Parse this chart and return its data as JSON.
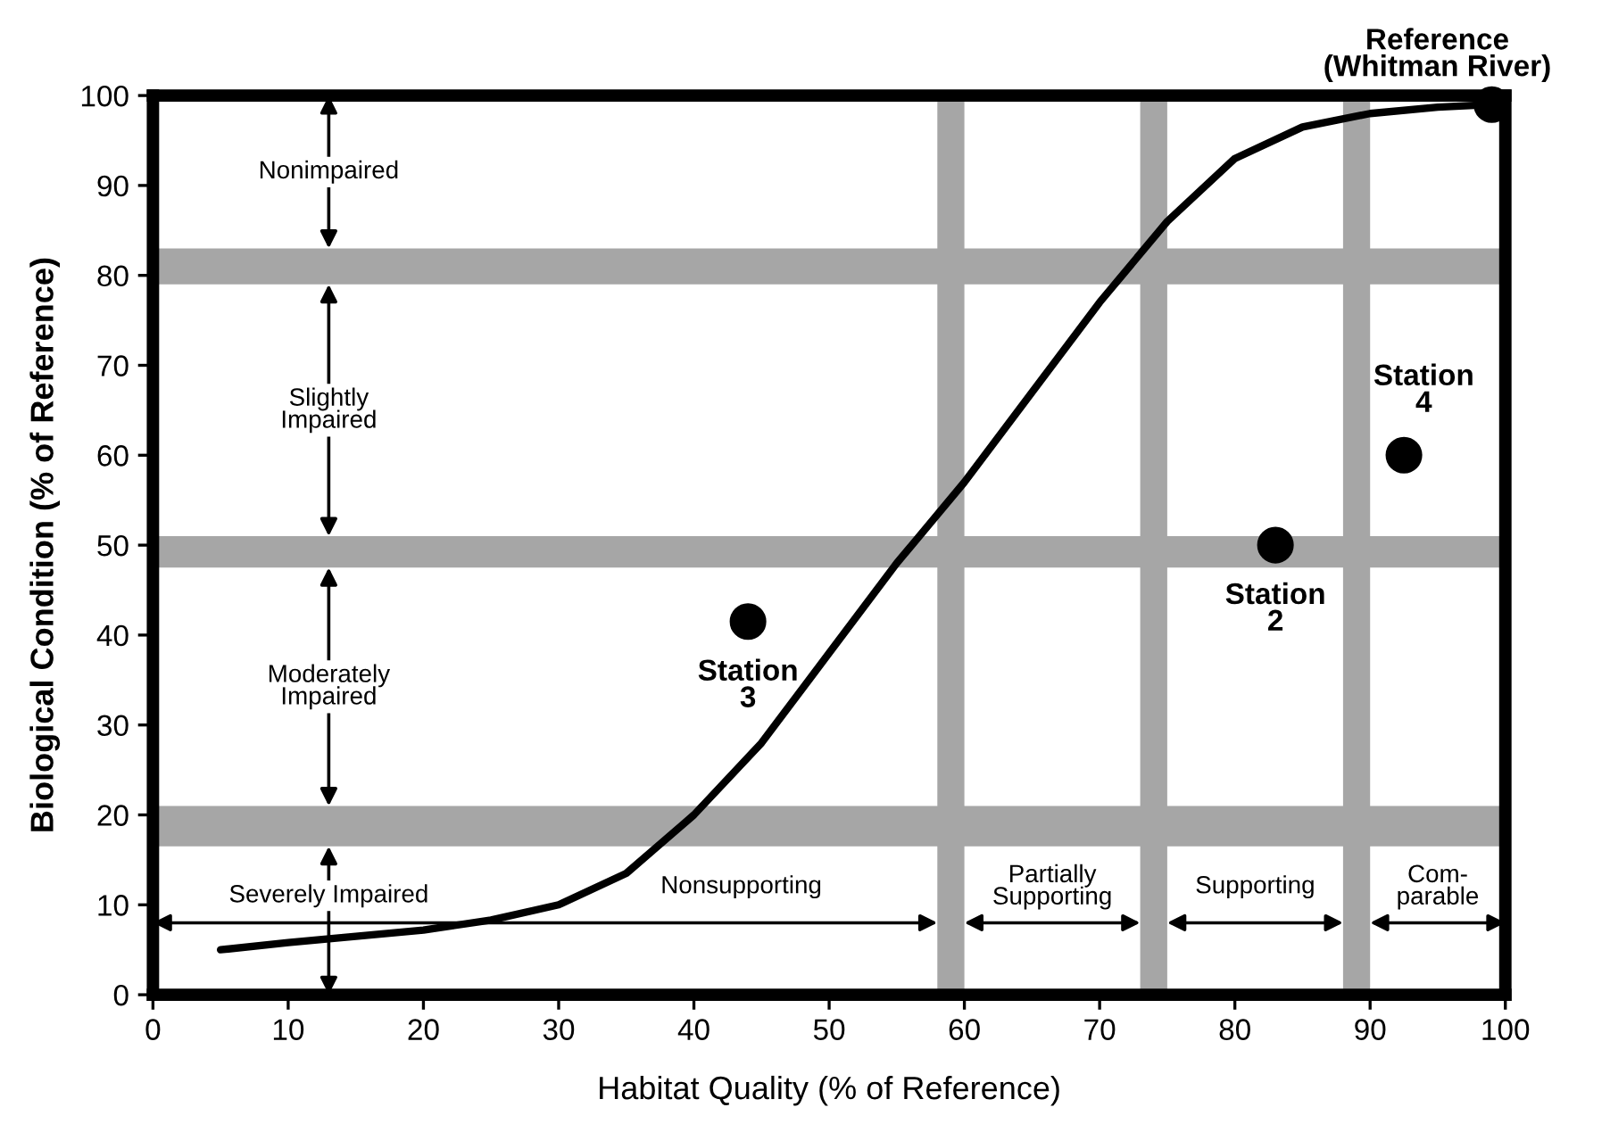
{
  "chart_data": {
    "type": "scatter",
    "xlabel": "Habitat Quality (% of Reference)",
    "ylabel": "Biological Condition (% of Reference)",
    "xlim": [
      0,
      100
    ],
    "ylim": [
      0,
      100
    ],
    "xticks": [
      0,
      10,
      20,
      30,
      40,
      50,
      60,
      70,
      80,
      90,
      100
    ],
    "yticks": [
      0,
      10,
      20,
      30,
      40,
      50,
      60,
      70,
      80,
      90,
      100
    ],
    "grid": false,
    "legend": false,
    "series": [
      {
        "type": "line",
        "color": "#000000",
        "line_style": "solid",
        "marker": "none",
        "x": [
          5,
          10,
          15,
          20,
          25,
          30,
          35,
          40,
          45,
          50,
          55,
          60,
          65,
          70,
          75,
          80,
          85,
          90,
          95,
          99
        ],
        "values": [
          5,
          5.8,
          6.5,
          7.2,
          8.3,
          10,
          13.5,
          20,
          28,
          38,
          48,
          57,
          67,
          77,
          86,
          93,
          96.5,
          98,
          98.7,
          99
        ]
      },
      {
        "color": "#000000",
        "marker": "circle",
        "x": [
          44,
          83,
          92.5,
          99
        ],
        "values": [
          41.5,
          50,
          60,
          99
        ]
      }
    ],
    "bands": [
      {
        "axis": "y",
        "from": 79,
        "to": 83,
        "color": "#a6a6a6"
      },
      {
        "axis": "y",
        "from": 47.5,
        "to": 51,
        "color": "#a6a6a6"
      },
      {
        "axis": "y",
        "from": 16.5,
        "to": 21,
        "color": "#a6a6a6"
      },
      {
        "axis": "x",
        "from": 58,
        "to": 60,
        "color": "#a6a6a6"
      },
      {
        "axis": "x",
        "from": 73,
        "to": 75,
        "color": "#a6a6a6"
      },
      {
        "axis": "x",
        "from": 88,
        "to": 90,
        "color": "#a6a6a6"
      }
    ],
    "annotations": [
      "Nonimpaired",
      "Slightly\nImpaired",
      "Moderately\nImpaired",
      "Severely Impaired",
      "Nonsupporting",
      "Partially\nSupporting",
      "Supporting",
      "Com-\nparable",
      "Station\n3",
      "Station\n2",
      "Station\n4",
      "Reference\n(Whitman River)"
    ]
  }
}
